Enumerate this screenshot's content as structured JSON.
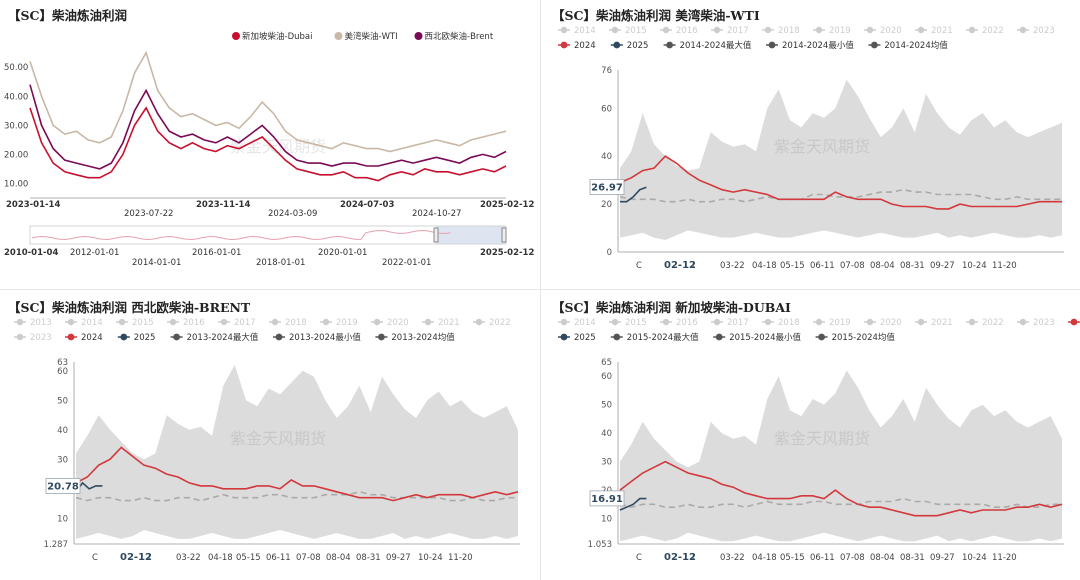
{
  "colors": {
    "red": "#d2383c",
    "navy": "#2f4a60",
    "tan": "#c9b8a6",
    "purple": "#7a0a55",
    "dark_red": "#c8102e",
    "gray_legend": "#cccccc",
    "band": "#dcdcdc",
    "avg": "#aaaaaa",
    "dark_gray": "#555555"
  },
  "watermark": "紫金天风期货",
  "chart_data": [
    {
      "id": "p1",
      "type": "line",
      "title": "【SC】柴油炼油利润",
      "legend": [
        {
          "name": "新加坡柴油-Dubai",
          "color": "#c8102e"
        },
        {
          "name": "美湾柴油-WTI",
          "color": "#c9b8a6"
        },
        {
          "name": "西北欧柴油-Brent",
          "color": "#7a0a55"
        }
      ],
      "y_ticks": [
        "50.00",
        "40.00",
        "30.00",
        "20.00",
        "10.00"
      ],
      "ylim": [
        5,
        58
      ],
      "x_ticks_top": [
        "2023-01-14",
        "2023-11-14",
        "2024-07-03",
        "2025-02-12"
      ],
      "x_ticks_bottom": [
        "2023-07-22",
        "2024-03-09",
        "2024-10-27"
      ],
      "slider_ticks_top": [
        "2010-01-04",
        "2012-01-01",
        "2016-01-01",
        "2020-01-01",
        "2025-02-12"
      ],
      "slider_ticks_bottom": [
        "2014-01-01",
        "2018-01-01",
        "2022-01-01"
      ],
      "series": [
        {
          "name": "美湾柴油-WTI",
          "color": "#c9b8a6",
          "values": [
            52,
            40,
            30,
            27,
            28,
            25,
            24,
            26,
            35,
            48,
            55,
            42,
            36,
            33,
            34,
            32,
            30,
            31,
            29,
            33,
            38,
            34,
            28,
            25,
            24,
            23,
            22,
            24,
            23,
            22,
            22,
            21,
            22,
            23,
            24,
            25,
            24,
            23,
            25,
            26,
            27,
            28
          ]
        },
        {
          "name": "西北欧柴油-Brent",
          "color": "#7a0a55",
          "values": [
            44,
            30,
            22,
            18,
            17,
            16,
            15,
            17,
            24,
            35,
            42,
            34,
            28,
            26,
            27,
            25,
            24,
            26,
            24,
            27,
            30,
            26,
            21,
            18,
            17,
            17,
            16,
            17,
            17,
            16,
            16,
            17,
            18,
            17,
            18,
            19,
            18,
            17,
            19,
            20,
            19,
            21
          ]
        },
        {
          "name": "新加坡柴油-Dubai",
          "color": "#c8102e",
          "values": [
            36,
            24,
            17,
            14,
            13,
            12,
            12,
            14,
            20,
            30,
            36,
            28,
            24,
            22,
            24,
            22,
            21,
            23,
            22,
            24,
            26,
            22,
            18,
            15,
            14,
            13,
            13,
            14,
            12,
            12,
            11,
            13,
            14,
            13,
            15,
            14,
            14,
            13,
            14,
            15,
            14,
            16
          ]
        }
      ]
    },
    {
      "id": "p2",
      "type": "line",
      "title": "【SC】柴油炼油利润 美湾柴油-WTI",
      "legend_years": [
        "2014",
        "2015",
        "2016",
        "2017",
        "2018",
        "2019",
        "2020",
        "2021",
        "2022",
        "2023"
      ],
      "legend_active": [
        {
          "name": "2024",
          "color": "#d2383c"
        },
        {
          "name": "2025",
          "color": "#2f4a60"
        },
        {
          "name": "2014-2024最大值",
          "color": "#555555"
        },
        {
          "name": "2014-2024最小值",
          "color": "#555555"
        },
        {
          "name": "2014-2024均值",
          "color": "#555555"
        }
      ],
      "y_ticks": [
        "76",
        "60",
        "40",
        "20",
        "0"
      ],
      "ylim": [
        0,
        76
      ],
      "current_value": "26.97",
      "x_ticks": [
        "C",
        "02-12",
        "i",
        "03-22",
        "04-18",
        "05-15",
        "06-11",
        "07-08",
        "08-04",
        "08-31",
        "09-27",
        "10-24",
        "11-20"
      ],
      "band_max": [
        35,
        42,
        58,
        45,
        40,
        36,
        34,
        35,
        50,
        46,
        44,
        45,
        42,
        60,
        68,
        55,
        52,
        58,
        56,
        60,
        72,
        65,
        56,
        48,
        52,
        60,
        50,
        66,
        58,
        52,
        49,
        55,
        58,
        52,
        55,
        50,
        48,
        50,
        52,
        54
      ],
      "band_min": [
        6,
        7,
        8,
        6,
        5,
        7,
        9,
        8,
        7,
        6,
        6,
        7,
        8,
        7,
        6,
        6,
        7,
        8,
        9,
        8,
        7,
        6,
        7,
        8,
        7,
        6,
        6,
        7,
        8,
        6,
        7,
        6,
        7,
        8,
        7,
        6,
        6,
        7,
        6,
        7
      ],
      "avg": [
        23,
        22,
        22,
        22,
        21,
        21,
        22,
        21,
        21,
        22,
        22,
        21,
        22,
        23,
        22,
        22,
        22,
        24,
        24,
        23,
        23,
        23,
        24,
        25,
        25,
        26,
        25,
        25,
        24,
        24,
        24,
        24,
        23,
        22,
        22,
        23,
        22,
        22,
        22,
        22
      ],
      "series_2024": [
        29,
        31,
        34,
        35,
        40,
        37,
        33,
        30,
        28,
        26,
        25,
        26,
        25,
        24,
        22,
        22,
        22,
        22,
        22,
        25,
        23,
        22,
        22,
        22,
        20,
        19,
        19,
        19,
        18,
        18,
        20,
        19,
        19,
        19,
        19,
        19,
        20,
        21,
        21,
        21
      ],
      "series_2025": [
        21,
        21,
        23,
        26,
        27
      ]
    },
    {
      "id": "p3",
      "type": "line",
      "title": "【SC】柴油炼油利润 西北欧柴油-BRENT",
      "legend_years": [
        "2013",
        "2014",
        "2015",
        "2016",
        "2017",
        "2018",
        "2019",
        "2020",
        "2021",
        "2022",
        "2023"
      ],
      "legend_active": [
        {
          "name": "2024",
          "color": "#d2383c"
        },
        {
          "name": "2025",
          "color": "#2f4a60"
        },
        {
          "name": "2013-2024最大值",
          "color": "#555555"
        },
        {
          "name": "2013-2024最小值",
          "color": "#555555"
        },
        {
          "name": "2013-2024均值",
          "color": "#555555"
        }
      ],
      "y_ticks": [
        "63",
        "60",
        "50",
        "40",
        "30",
        "20",
        "10",
        "1.287"
      ],
      "ylim": [
        1.287,
        63
      ],
      "current_value": "20.78",
      "x_ticks": [
        "C",
        "02-12",
        "i",
        "03-22",
        "04-18",
        "05-15",
        "06-11",
        "07-08",
        "08-04",
        "08-31",
        "09-27",
        "10-24",
        "11-20"
      ],
      "band_max": [
        32,
        38,
        45,
        40,
        36,
        32,
        30,
        32,
        45,
        42,
        40,
        41,
        38,
        55,
        62,
        50,
        48,
        54,
        52,
        56,
        60,
        58,
        50,
        44,
        48,
        55,
        46,
        58,
        52,
        47,
        44,
        50,
        53,
        48,
        50,
        46,
        44,
        46,
        48,
        40
      ],
      "band_min": [
        3,
        4,
        5,
        4,
        3,
        4,
        6,
        5,
        4,
        3,
        3,
        4,
        5,
        4,
        3,
        3,
        4,
        5,
        6,
        5,
        4,
        3,
        4,
        5,
        4,
        3,
        3,
        4,
        5,
        3,
        4,
        3,
        4,
        5,
        4,
        3,
        3,
        4,
        3,
        4
      ],
      "avg": [
        17,
        16,
        17,
        17,
        16,
        16,
        17,
        16,
        16,
        17,
        17,
        16,
        17,
        18,
        17,
        17,
        17,
        18,
        18,
        17,
        17,
        17,
        18,
        18,
        18,
        19,
        18,
        18,
        17,
        17,
        17,
        17,
        17,
        16,
        16,
        17,
        16,
        16,
        17,
        17
      ],
      "series_2024": [
        22,
        24,
        28,
        30,
        34,
        31,
        28,
        27,
        25,
        24,
        22,
        21,
        21,
        20,
        20,
        20,
        21,
        21,
        20,
        23,
        21,
        21,
        20,
        19,
        18,
        17,
        17,
        17,
        16,
        17,
        18,
        17,
        18,
        18,
        18,
        17,
        18,
        19,
        18,
        19
      ],
      "series_2025": [
        19,
        22,
        20,
        21,
        21
      ]
    },
    {
      "id": "p4",
      "type": "line",
      "title": "【SC】柴油炼油利润 新加坡柴油-DUBAI",
      "legend_years": [
        "2014",
        "2015",
        "2016",
        "2017",
        "2018",
        "2019",
        "2020",
        "2021",
        "2022",
        "2023"
      ],
      "legend_active": [
        {
          "name": "2024",
          "color": "#d2383c"
        },
        {
          "name": "2025",
          "color": "#2f4a60"
        },
        {
          "name": "2015-2024最大值",
          "color": "#555555"
        },
        {
          "name": "2015-2024最小值",
          "color": "#555555"
        },
        {
          "name": "2015-2024均值",
          "color": "#555555"
        }
      ],
      "y_ticks": [
        "65",
        "60",
        "50",
        "40",
        "30",
        "20",
        "10",
        "1.053"
      ],
      "ylim": [
        1.053,
        65
      ],
      "current_value": "16.91",
      "x_ticks": [
        "C",
        "02-12",
        "i",
        "03-22",
        "04-18",
        "05-15",
        "06-11",
        "07-08",
        "08-04",
        "08-31",
        "09-27",
        "10-24",
        "11-20"
      ],
      "band_max": [
        30,
        36,
        44,
        38,
        34,
        30,
        28,
        30,
        44,
        40,
        38,
        39,
        36,
        52,
        60,
        48,
        46,
        52,
        50,
        54,
        62,
        56,
        48,
        42,
        46,
        52,
        44,
        56,
        50,
        45,
        42,
        48,
        50,
        46,
        48,
        44,
        42,
        44,
        46,
        38
      ],
      "band_min": [
        2,
        3,
        4,
        3,
        2,
        3,
        5,
        4,
        3,
        2,
        2,
        3,
        4,
        3,
        2,
        2,
        3,
        4,
        5,
        4,
        3,
        2,
        3,
        4,
        3,
        2,
        2,
        3,
        4,
        2,
        3,
        2,
        3,
        4,
        3,
        2,
        2,
        3,
        2,
        3
      ],
      "avg": [
        15,
        14,
        15,
        15,
        14,
        14,
        15,
        14,
        14,
        15,
        15,
        14,
        15,
        16,
        15,
        15,
        15,
        16,
        16,
        15,
        15,
        15,
        16,
        16,
        16,
        17,
        16,
        16,
        15,
        15,
        15,
        15,
        15,
        14,
        14,
        15,
        14,
        14,
        15,
        15
      ],
      "series_2024": [
        20,
        23,
        26,
        28,
        30,
        28,
        26,
        25,
        24,
        22,
        21,
        19,
        18,
        17,
        17,
        17,
        18,
        18,
        17,
        20,
        17,
        15,
        14,
        14,
        13,
        12,
        11,
        11,
        11,
        12,
        13,
        12,
        13,
        13,
        13,
        14,
        14,
        15,
        14,
        15
      ],
      "series_2025": [
        13,
        14,
        15,
        17,
        17
      ]
    }
  ]
}
